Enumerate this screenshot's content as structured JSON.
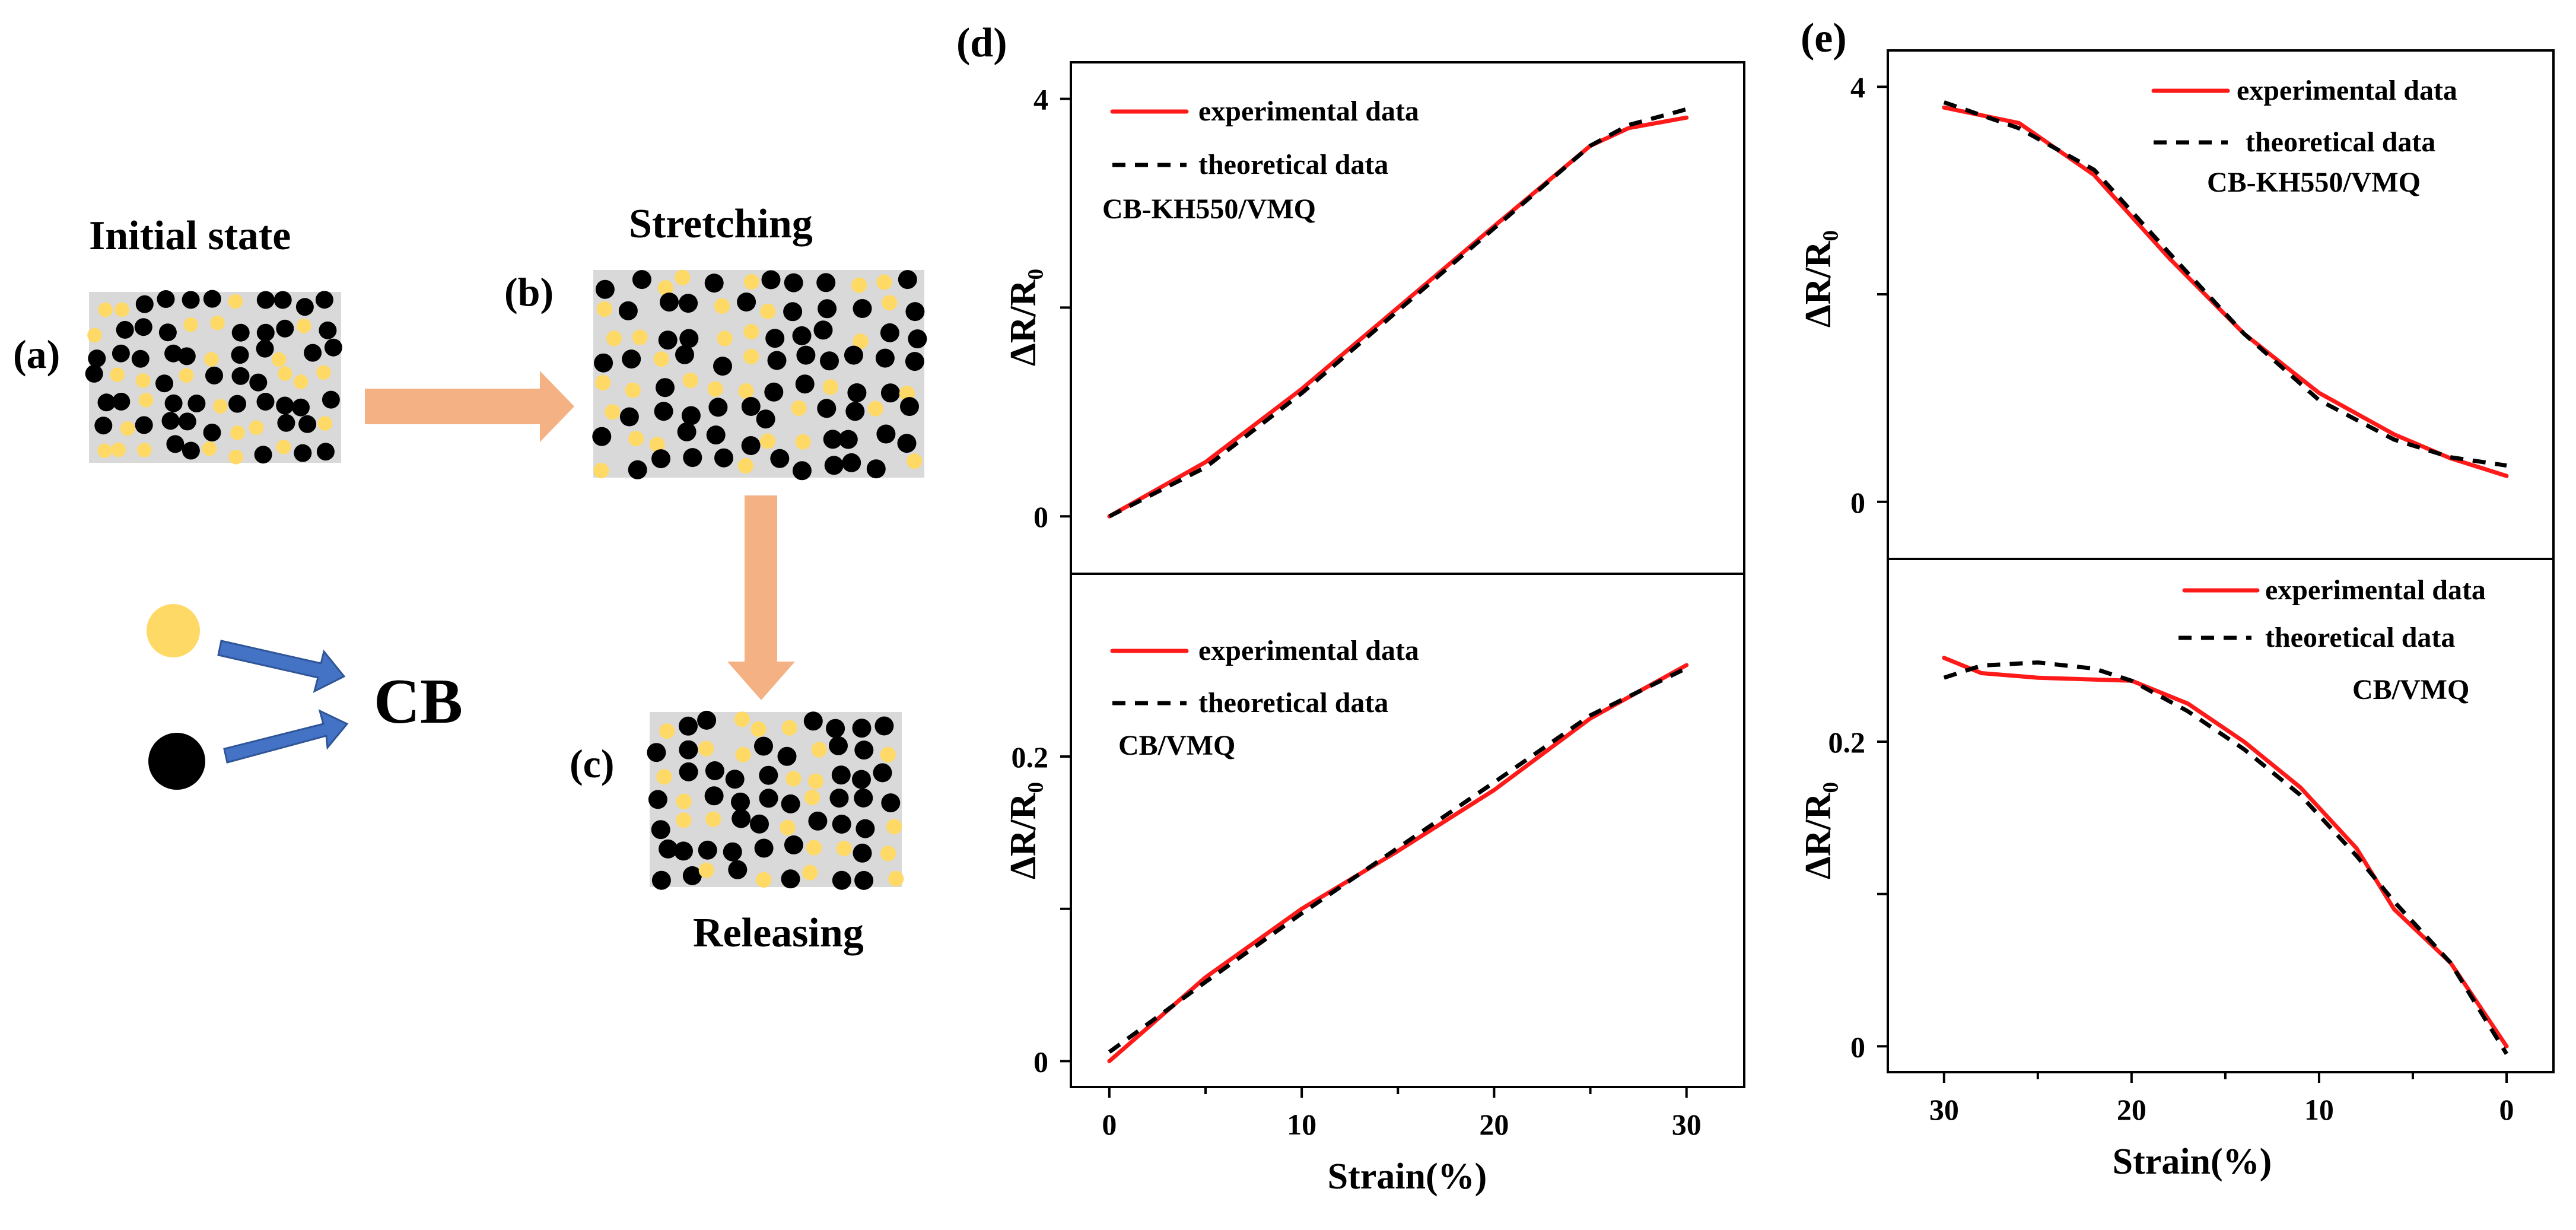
{
  "panel_labels": {
    "a": "(a)",
    "b": "(b)",
    "c": "(c)",
    "d": "(d)",
    "e": "(e)"
  },
  "schematic": {
    "initial_state": "Initial state",
    "stretching": "Stretching",
    "releasing": "Releasing",
    "cb_label": "CB",
    "colors": {
      "matrix": "#d9d9d9",
      "filler_yellow": "#ffd966",
      "cb_black": "#000000",
      "arrow_orange": "#f4b183",
      "arrow_blue": "#4472c4"
    }
  },
  "legend": {
    "experimental": "experimental data",
    "theoretical": "theoretical data"
  },
  "colors": {
    "experimental": "#ff1a1a",
    "theoretical": "#000000"
  },
  "chart_data": [
    {
      "id": "d-top",
      "type": "line",
      "panel": "d",
      "annotation": "CB-KH550/VMQ",
      "ylabel": "ΔR/R₀",
      "xlabel": "",
      "xlim": [
        -2,
        33
      ],
      "ylim": [
        -0.55,
        4.35
      ],
      "xticks": [
        0,
        10,
        20,
        30
      ],
      "yticks": [
        0,
        4
      ],
      "ytick_labels": [
        "0",
        "4"
      ],
      "series": [
        {
          "name": "experimental data",
          "x": [
            0,
            5,
            10,
            15,
            20,
            25,
            27,
            30
          ],
          "y": [
            0.0,
            0.52,
            1.22,
            2.0,
            2.78,
            3.55,
            3.72,
            3.82
          ]
        },
        {
          "name": "theoretical data",
          "x": [
            0,
            5,
            10,
            15,
            20,
            25,
            27,
            30
          ],
          "y": [
            0.0,
            0.47,
            1.18,
            1.97,
            2.76,
            3.55,
            3.75,
            3.9
          ]
        }
      ]
    },
    {
      "id": "d-bottom",
      "type": "line",
      "panel": "d",
      "annotation": "CB/VMQ",
      "ylabel": "ΔR/R₀",
      "xlabel": "Strain(%)",
      "xlim": [
        -2,
        33
      ],
      "ylim": [
        -0.017,
        0.32
      ],
      "xticks": [
        0,
        10,
        20,
        30
      ],
      "yticks": [
        0,
        0.2
      ],
      "ytick_labels": [
        "0",
        "0.2"
      ],
      "series": [
        {
          "name": "experimental data",
          "x": [
            0,
            5,
            10,
            15,
            20,
            25,
            30
          ],
          "y": [
            0.0,
            0.055,
            0.1,
            0.138,
            0.178,
            0.225,
            0.26
          ]
        },
        {
          "name": "theoretical data",
          "x": [
            0,
            5,
            10,
            15,
            20,
            25,
            30
          ],
          "y": [
            0.006,
            0.052,
            0.097,
            0.14,
            0.183,
            0.227,
            0.258
          ]
        }
      ]
    },
    {
      "id": "e-top",
      "type": "line",
      "panel": "e",
      "annotation": "CB-KH550/VMQ",
      "ylabel": "ΔR/R₀",
      "xlabel": "",
      "xlim": [
        33,
        -2.5
      ],
      "ylim": [
        -0.55,
        4.35
      ],
      "xticks": [
        30,
        20,
        10,
        0
      ],
      "yticks": [
        0,
        4
      ],
      "ytick_labels": [
        "0",
        "4"
      ],
      "series": [
        {
          "name": "experimental data",
          "x": [
            30,
            26,
            22,
            18,
            14,
            10,
            6,
            3,
            0
          ],
          "y": [
            3.8,
            3.65,
            3.15,
            2.35,
            1.62,
            1.05,
            0.65,
            0.42,
            0.25
          ]
        },
        {
          "name": "theoretical data",
          "x": [
            30,
            26,
            22,
            18,
            14,
            10,
            6,
            3,
            0
          ],
          "y": [
            3.85,
            3.6,
            3.2,
            2.4,
            1.62,
            0.98,
            0.6,
            0.43,
            0.35
          ]
        }
      ]
    },
    {
      "id": "e-bottom",
      "type": "line",
      "panel": "e",
      "annotation": "CB/VMQ",
      "ylabel": "ΔR/R₀",
      "xlabel": "Strain(%)",
      "xlim": [
        33,
        -2.5
      ],
      "ylim": [
        -0.017,
        0.32
      ],
      "xticks": [
        30,
        20,
        10,
        0
      ],
      "yticks": [
        0,
        0.2
      ],
      "ytick_labels": [
        "0",
        "0.2"
      ],
      "series": [
        {
          "name": "experimental data",
          "x": [
            30,
            28,
            25,
            20,
            17,
            14,
            11,
            8,
            6,
            3,
            0
          ],
          "y": [
            0.255,
            0.245,
            0.242,
            0.24,
            0.225,
            0.2,
            0.17,
            0.13,
            0.09,
            0.055,
            0.0
          ]
        },
        {
          "name": "theoretical data",
          "x": [
            30,
            28,
            25,
            22,
            20,
            17,
            14,
            11,
            8,
            6,
            3,
            0
          ],
          "y": [
            0.242,
            0.25,
            0.252,
            0.248,
            0.24,
            0.22,
            0.195,
            0.165,
            0.125,
            0.095,
            0.055,
            -0.005
          ]
        }
      ]
    }
  ]
}
